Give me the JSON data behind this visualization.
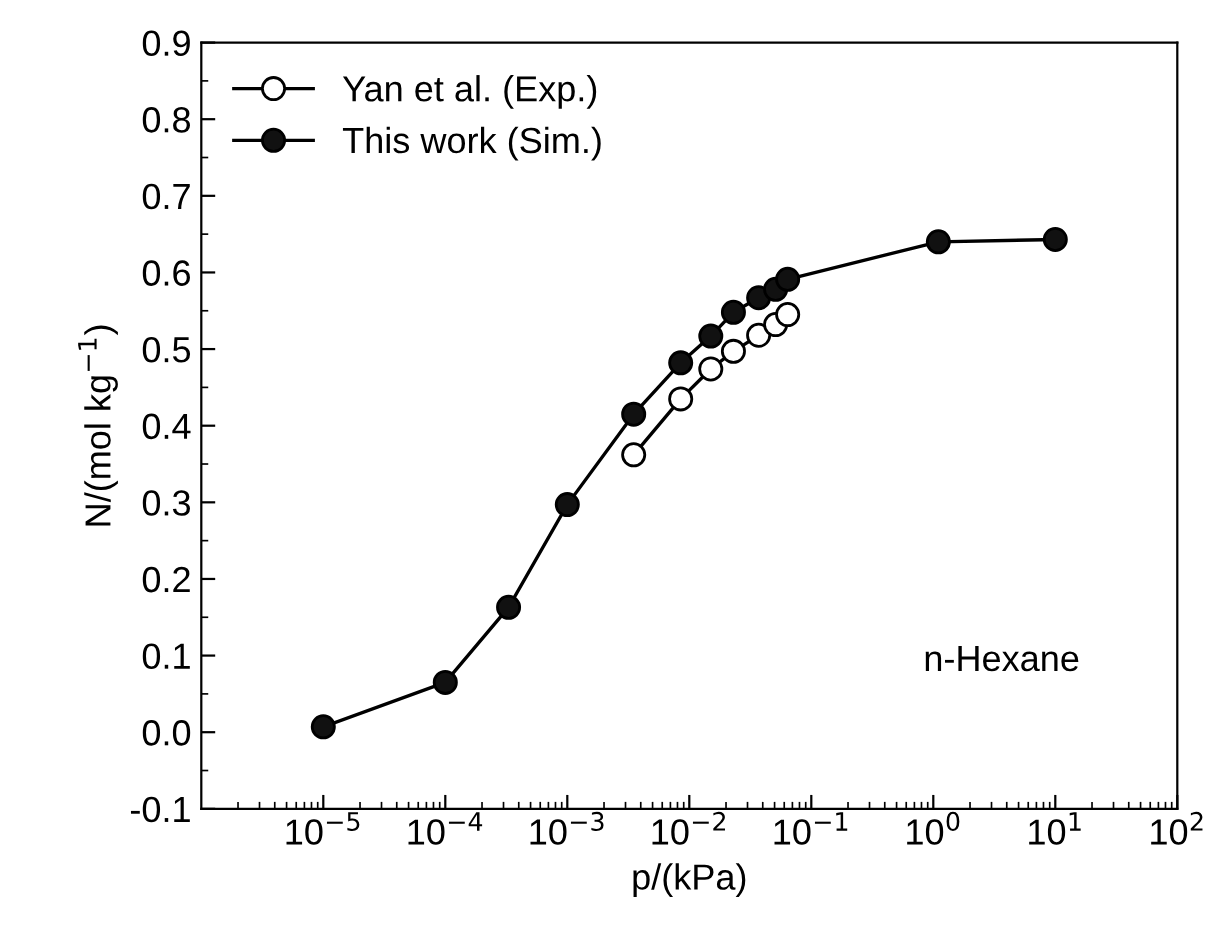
{
  "chart_data": {
    "type": "line",
    "xlabel": "p/(kPa)",
    "ylabel": "N/(mol kg$^{−1}$)",
    "log": "x",
    "xlim": [
      1e-06,
      100
    ],
    "ylim": [
      -0.1,
      0.9
    ],
    "xticks": [
      {
        "value": 1e-05,
        "label": "10$^{−5}$"
      },
      {
        "value": 0.0001,
        "label": "10$^{−4}$"
      },
      {
        "value": 0.001,
        "label": "10$^{−3}$"
      },
      {
        "value": 0.01,
        "label": "10$^{−2}$"
      },
      {
        "value": 0.1,
        "label": "10$^{−1}$"
      },
      {
        "value": 1,
        "label": "10$^{0}$"
      },
      {
        "value": 10,
        "label": "10$^{1}$"
      },
      {
        "value": 100,
        "label": "10$^{2}$"
      }
    ],
    "yticks": [
      -0.1,
      {
        "value": 0,
        "label": "0.0"
      },
      0.1,
      0.2,
      0.3,
      0.4,
      0.5,
      0.6,
      0.7,
      0.8,
      0.9
    ],
    "legend": "top left",
    "marker": "circle",
    "grid": false,
    "annotations": [
      {
        "text": "n-Hexane"
      }
    ],
    "series": [
      {
        "name": "Yan et al. (Exp.)",
        "color": "#ffffff",
        "x": [
          0.0035,
          0.0085,
          0.015,
          0.023,
          0.037,
          0.051,
          0.064
        ],
        "values": [
          0.362,
          0.435,
          0.474,
          0.497,
          0.518,
          0.532,
          0.545
        ]
      },
      {
        "name": "This work (Sim.)",
        "color": "#111111",
        "x": [
          1e-05,
          0.0001,
          0.00033,
          0.001,
          0.0035,
          0.0085,
          0.015,
          0.023,
          0.037,
          0.051,
          0.064,
          1.1,
          10
        ],
        "values": [
          0.007,
          0.065,
          0.163,
          0.297,
          0.415,
          0.482,
          0.517,
          0.548,
          0.567,
          0.578,
          0.591,
          0.64,
          0.643
        ]
      }
    ]
  }
}
